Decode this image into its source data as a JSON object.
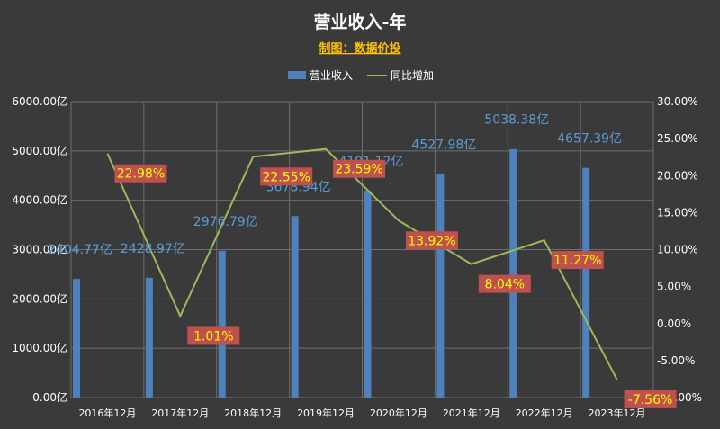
{
  "chart_data": {
    "type": "bar",
    "title": "营业收入-年",
    "subtitle": "制图：数据价投",
    "categories": [
      "2016年12月",
      "2017年12月",
      "2018年12月",
      "2019年12月",
      "2020年12月",
      "2021年12月",
      "2022年12月",
      "2023年12月"
    ],
    "series": [
      {
        "name": "营业收入",
        "type": "bar",
        "axis": "left",
        "values": [
          2404.77,
          2428.97,
          2976.79,
          3678.94,
          4191.12,
          4527.98,
          5038.38,
          4657.39
        ],
        "labels": [
          "2404.77亿",
          "2428.97亿",
          "2976.79亿",
          "3678.94亿",
          "4191.12亿",
          "4527.98亿",
          "5038.38亿",
          "4657.39亿"
        ],
        "color": "#4f81bd"
      },
      {
        "name": "同比增加",
        "type": "line",
        "axis": "right",
        "values": [
          22.98,
          1.01,
          22.55,
          23.59,
          13.92,
          8.04,
          11.27,
          -7.56
        ],
        "labels": [
          "22.98%",
          "1.01%",
          "22.55%",
          "23.59%",
          "13.92%",
          "8.04%",
          "11.27%",
          "-7.56%"
        ],
        "color": "#9bbb59"
      }
    ],
    "y_left": {
      "ylim": [
        0,
        6000
      ],
      "ticks": [
        "0.00亿",
        "1000.00亿",
        "2000.00亿",
        "3000.00亿",
        "4000.00亿",
        "5000.00亿",
        "6000.00亿"
      ]
    },
    "y_right": {
      "ylim": [
        -10,
        30
      ],
      "ticks": [
        "-10.00%",
        "-5.00%",
        "0.00%",
        "5.00%",
        "10.00%",
        "15.00%",
        "20.00%",
        "25.00%",
        "30.00%"
      ]
    },
    "legend": "top-center",
    "grid": true,
    "colors": {
      "background": "#3a3a3a",
      "title": "#ffffff",
      "subtitle": "#ffc000",
      "label_box": "#c0504d",
      "label_text": "#ffff00",
      "bar_label": "#5b9bd5",
      "grid": "#6e6e6e"
    }
  }
}
